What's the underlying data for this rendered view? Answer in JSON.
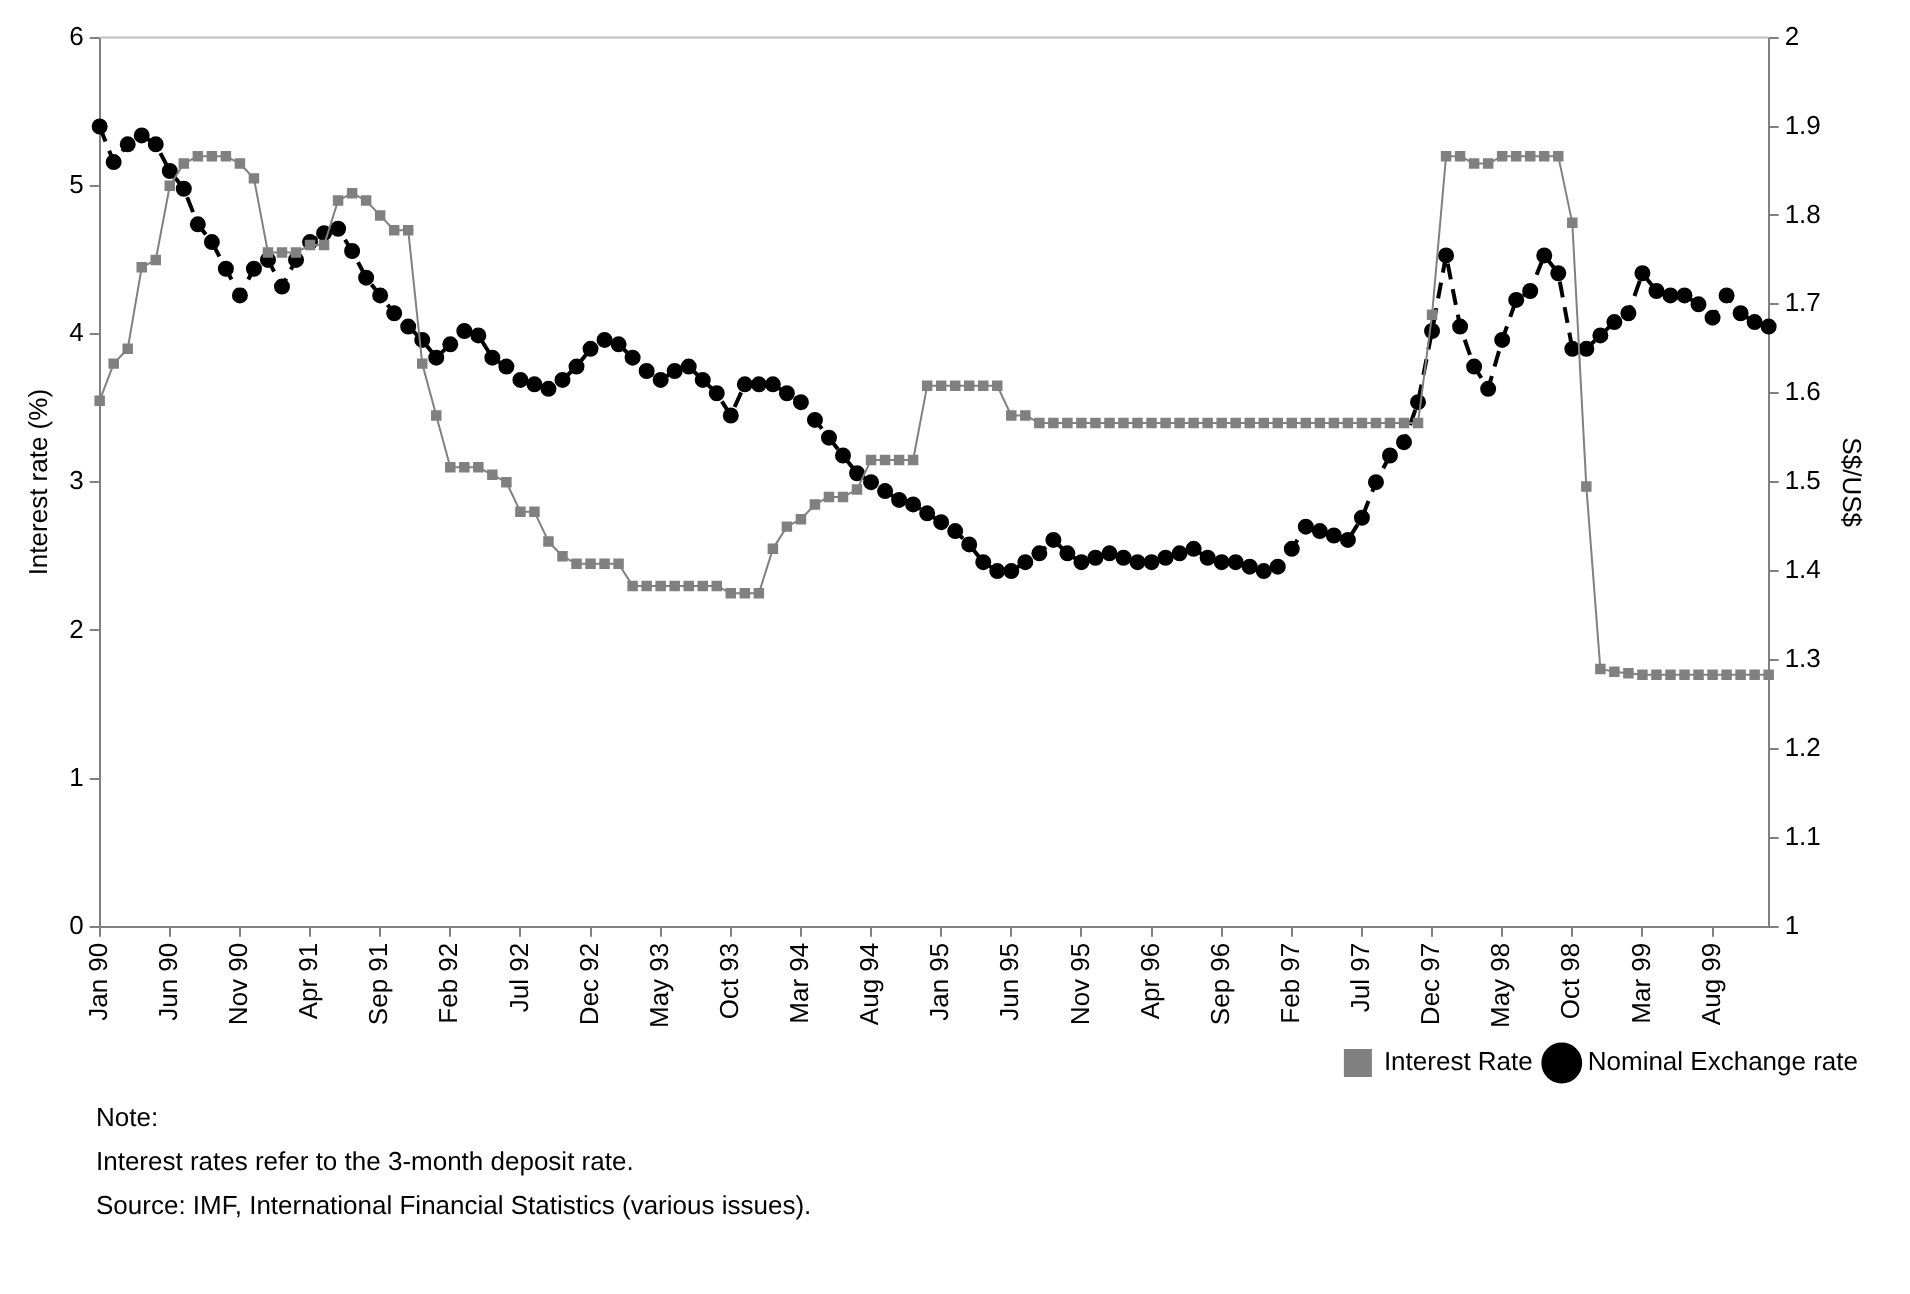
{
  "chart_data": {
    "type": "line",
    "categories": [
      "Jan 90",
      null,
      null,
      null,
      null,
      "Jun 90",
      null,
      null,
      null,
      null,
      "Nov 90",
      null,
      null,
      null,
      null,
      "Apr 91",
      null,
      null,
      null,
      null,
      "Sep 91",
      null,
      null,
      null,
      null,
      "Feb 92",
      null,
      null,
      null,
      null,
      "Jul 92",
      null,
      null,
      null,
      null,
      "Dec 92",
      null,
      null,
      null,
      null,
      "May 93",
      null,
      null,
      null,
      null,
      "Oct 93",
      null,
      null,
      null,
      null,
      "Mar 94",
      null,
      null,
      null,
      null,
      "Aug 94",
      null,
      null,
      null,
      null,
      "Jan 95",
      null,
      null,
      null,
      null,
      "Jun 95",
      null,
      null,
      null,
      null,
      "Nov 95",
      null,
      null,
      null,
      null,
      "Apr 96",
      null,
      null,
      null,
      null,
      "Sep 96",
      null,
      null,
      null,
      null,
      "Feb 97",
      null,
      null,
      null,
      null,
      "Jul 97",
      null,
      null,
      null,
      null,
      "Dec 97",
      null,
      null,
      null,
      null,
      "May 98",
      null,
      null,
      null,
      null,
      "Oct 98",
      null,
      null,
      null,
      null,
      "Mar 99",
      null,
      null,
      null,
      null,
      "Aug 99",
      null,
      null,
      null,
      null
    ],
    "series": [
      {
        "name": "Interest Rate",
        "color": "#808080",
        "marker": "square",
        "line_style": "solid",
        "values": [
          3.55,
          3.8,
          3.9,
          4.45,
          4.5,
          5.0,
          5.15,
          5.2,
          5.2,
          5.2,
          5.15,
          5.05,
          4.55,
          4.55,
          4.55,
          4.6,
          4.6,
          4.9,
          4.95,
          4.9,
          4.8,
          4.7,
          4.7,
          3.8,
          3.45,
          3.1,
          3.1,
          3.1,
          3.05,
          3.0,
          2.8,
          2.8,
          2.6,
          2.5,
          2.45,
          2.45,
          2.45,
          2.45,
          2.3,
          2.3,
          2.3,
          2.3,
          2.3,
          2.3,
          2.3,
          2.25,
          2.25,
          2.25,
          2.55,
          2.7,
          2.75,
          2.85,
          2.9,
          2.9,
          2.95,
          3.15,
          3.15,
          3.15,
          3.15,
          3.65,
          3.65,
          3.65,
          3.65,
          3.65,
          3.65,
          3.45,
          3.45,
          3.4,
          3.4,
          3.4,
          3.4,
          3.4,
          3.4,
          3.4,
          3.4,
          3.4,
          3.4,
          3.4,
          3.4,
          3.4,
          3.4,
          3.4,
          3.4,
          3.4,
          3.4,
          3.4,
          3.4,
          3.4,
          3.4,
          3.4,
          3.4,
          3.4,
          3.4,
          3.4,
          3.4,
          4.13,
          5.2,
          5.2,
          5.15,
          5.15,
          5.2,
          5.2,
          5.2,
          5.2,
          5.2,
          4.75,
          2.97,
          1.74,
          1.72,
          1.71,
          1.7,
          1.7,
          1.7,
          1.7,
          1.7,
          1.7,
          1.7,
          1.7,
          1.7,
          1.7
        ]
      },
      {
        "name": "Nominal Exchange rate",
        "color": "#000000",
        "marker": "circle",
        "line_style": "dashed",
        "axis": "y2",
        "values": [
          1.9,
          1.86,
          1.88,
          1.89,
          1.88,
          1.85,
          1.83,
          1.79,
          1.77,
          1.74,
          1.71,
          1.74,
          1.75,
          1.72,
          1.75,
          1.77,
          1.78,
          1.785,
          1.76,
          1.73,
          1.71,
          1.69,
          1.675,
          1.66,
          1.64,
          1.655,
          1.67,
          1.665,
          1.64,
          1.63,
          1.615,
          1.61,
          1.605,
          1.615,
          1.63,
          1.65,
          1.66,
          1.655,
          1.64,
          1.625,
          1.615,
          1.625,
          1.63,
          1.615,
          1.6,
          1.575,
          1.61,
          1.61,
          1.61,
          1.6,
          1.59,
          1.57,
          1.55,
          1.53,
          1.51,
          1.5,
          1.49,
          1.48,
          1.475,
          1.465,
          1.455,
          1.445,
          1.43,
          1.41,
          1.4,
          1.4,
          1.41,
          1.42,
          1.435,
          1.42,
          1.41,
          1.415,
          1.42,
          1.415,
          1.41,
          1.41,
          1.415,
          1.42,
          1.425,
          1.415,
          1.41,
          1.41,
          1.405,
          1.4,
          1.405,
          1.425,
          1.45,
          1.445,
          1.44,
          1.435,
          1.46,
          1.5,
          1.53,
          1.545,
          1.59,
          1.67,
          1.755,
          1.675,
          1.63,
          1.605,
          1.66,
          1.705,
          1.715,
          1.755,
          1.735,
          1.65,
          1.65,
          1.665,
          1.68,
          1.69,
          1.735,
          1.715,
          1.71,
          1.71,
          1.7,
          1.685,
          1.71,
          1.69,
          1.68,
          1.675
        ]
      }
    ],
    "ylabel": "Interest rate (%)",
    "y2label": "S$/US$",
    "ylim": [
      0,
      6
    ],
    "yticks": [
      0,
      1,
      2,
      3,
      4,
      5,
      6
    ],
    "y2lim": [
      1,
      2
    ],
    "y2ticks": [
      1,
      1.1,
      1.2,
      1.3,
      1.4,
      1.5,
      1.6,
      1.7,
      1.8,
      1.9,
      2
    ],
    "grid": false,
    "legend": "bottom right",
    "annotations": [
      "Note:",
      "Interest rates refer to the 3-month deposit rate.",
      "Source: IMF, International Financial Statistics (various issues)."
    ]
  }
}
